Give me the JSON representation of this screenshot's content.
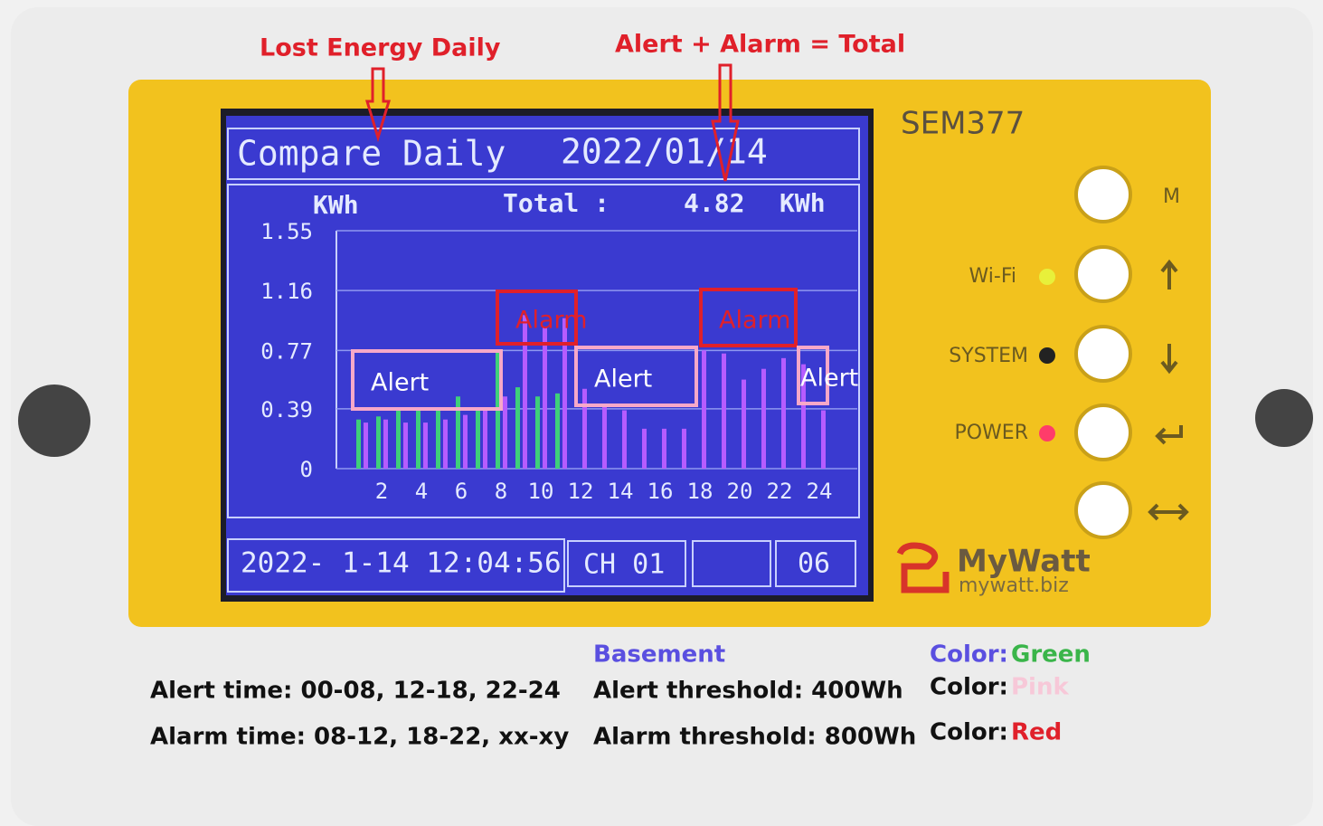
{
  "annotations": {
    "lost_energy": "Lost Energy Daily",
    "total_formula": "Alert + Alarm = Total"
  },
  "device": {
    "model": "SEM377",
    "button_label": "M",
    "leds": [
      "Wi-Fi",
      "SYSTEM",
      "POWER"
    ],
    "brand": "MyWatt",
    "url": "mywatt.biz"
  },
  "screen": {
    "title": "Compare Daily",
    "date": "2022/01/14",
    "unit": "KWh",
    "total_label": "Total :",
    "total_value": 4.82,
    "total_unit": "KWh",
    "clock": "2022- 1-14 12:04:56",
    "channel": "CH 01",
    "page": "06"
  },
  "chart_data": {
    "type": "bar",
    "categories": [
      null,
      "2",
      null,
      "4",
      null,
      "6",
      null,
      "8",
      null,
      "10",
      null,
      "12",
      null,
      "14",
      null,
      "16",
      null,
      "18",
      null,
      "20",
      null,
      "22",
      null,
      "24"
    ],
    "series": [
      {
        "color": "#3fcf7a",
        "values": [
          0.32,
          0.34,
          0.38,
          0.38,
          0.38,
          0.47,
          0.38,
          0.76,
          0.53,
          0.47,
          0.49,
          null,
          null,
          null,
          null,
          null,
          null,
          null,
          null,
          null,
          null,
          null,
          null,
          null
        ]
      },
      {
        "color": "#b65cff",
        "values": [
          0.3,
          0.32,
          0.3,
          0.3,
          0.32,
          0.35,
          0.4,
          0.47,
          1.0,
          0.92,
          0.98,
          0.52,
          0.42,
          0.38,
          0.26,
          0.26,
          0.26,
          0.77,
          0.75,
          0.58,
          0.65,
          0.72,
          0.68,
          0.38
        ]
      }
    ],
    "ylim": [
      0,
      1.55
    ],
    "yticks": [
      0,
      0.39,
      0.77,
      1.16,
      1.55
    ],
    "grid": true,
    "callouts": [
      {
        "text": "Alert",
        "color": "#f7a8c8"
      },
      {
        "text": "Alarm",
        "color": "#e0202a"
      },
      {
        "text": "Alert",
        "color": "#f7a8c8"
      },
      {
        "text": "Alarm",
        "color": "#e0202a"
      },
      {
        "text": "Alert",
        "color": "#f7a8c8"
      }
    ]
  },
  "notes": {
    "alert_time": "Alert time: 00-08, 12-18, 22-24",
    "alarm_time": "Alarm time: 08-12, 18-22, xx-xy",
    "zone": "Basement",
    "alert_threshold": "Alert threshold: 400Wh",
    "alarm_threshold": "Alarm threshold: 800Wh",
    "colors": [
      {
        "label": "Color:",
        "value": "Green"
      },
      {
        "label": "Color:",
        "value": "Pink"
      },
      {
        "label": "Color:",
        "value": "Red"
      }
    ]
  }
}
